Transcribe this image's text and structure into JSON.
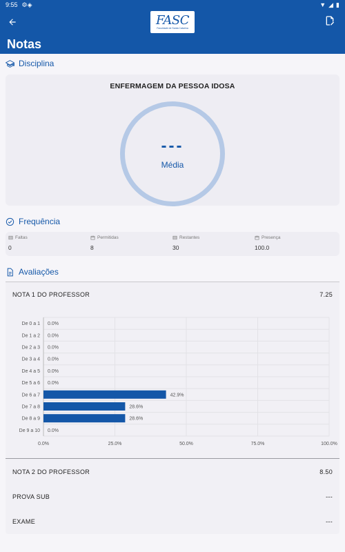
{
  "status": {
    "time": "9:55"
  },
  "appbar": {
    "title": "Notas",
    "logo_text": "FASC",
    "logo_sub": "Faculdade de Santa Catarina"
  },
  "disciplina": {
    "header": "Disciplina",
    "name": "ENFERMAGEM DA PESSOA IDOSA",
    "average_value": "---",
    "average_label": "Média"
  },
  "frequencia": {
    "header": "Frequência",
    "items": [
      {
        "label": "Faltas",
        "value": "0"
      },
      {
        "label": "Permitidas",
        "value": "8"
      },
      {
        "label": "Restantes",
        "value": "30"
      },
      {
        "label": "Presença",
        "value": "100.0"
      }
    ]
  },
  "avaliacoes": {
    "header": "Avaliações",
    "items": [
      {
        "label": "NOTA 1 DO PROFESSOR",
        "score": "7.25"
      },
      {
        "label": "NOTA 2 DO PROFESSOR",
        "score": "8.50"
      },
      {
        "label": "PROVA SUB",
        "score": "---"
      },
      {
        "label": "EXAME",
        "score": "---"
      }
    ]
  },
  "chart_data": {
    "type": "bar",
    "orientation": "horizontal",
    "categories": [
      "De 0 a 1",
      "De 1 a 2",
      "De 2 a 3",
      "De 3 a 4",
      "De 4 a 5",
      "De 5 a 6",
      "De 6 a 7",
      "De 7 a 8",
      "De 8 a 9",
      "De 9 a 10"
    ],
    "values": [
      0.0,
      0.0,
      0.0,
      0.0,
      0.0,
      0.0,
      42.9,
      28.6,
      28.6,
      0.0
    ],
    "value_labels": [
      "0.0%",
      "0.0%",
      "0.0%",
      "0.0%",
      "0.0%",
      "0.0%",
      "42.9%",
      "28.6%",
      "28.6%",
      "0.0%"
    ],
    "x_ticks": [
      "0.0%",
      "25.0%",
      "50.0%",
      "75.0%",
      "100.0%"
    ],
    "xlim": [
      0,
      100
    ],
    "bar_color": "#1457a8",
    "grid": true
  },
  "colors": {
    "primary": "#1457a8",
    "ring": "#b5c9e6"
  }
}
